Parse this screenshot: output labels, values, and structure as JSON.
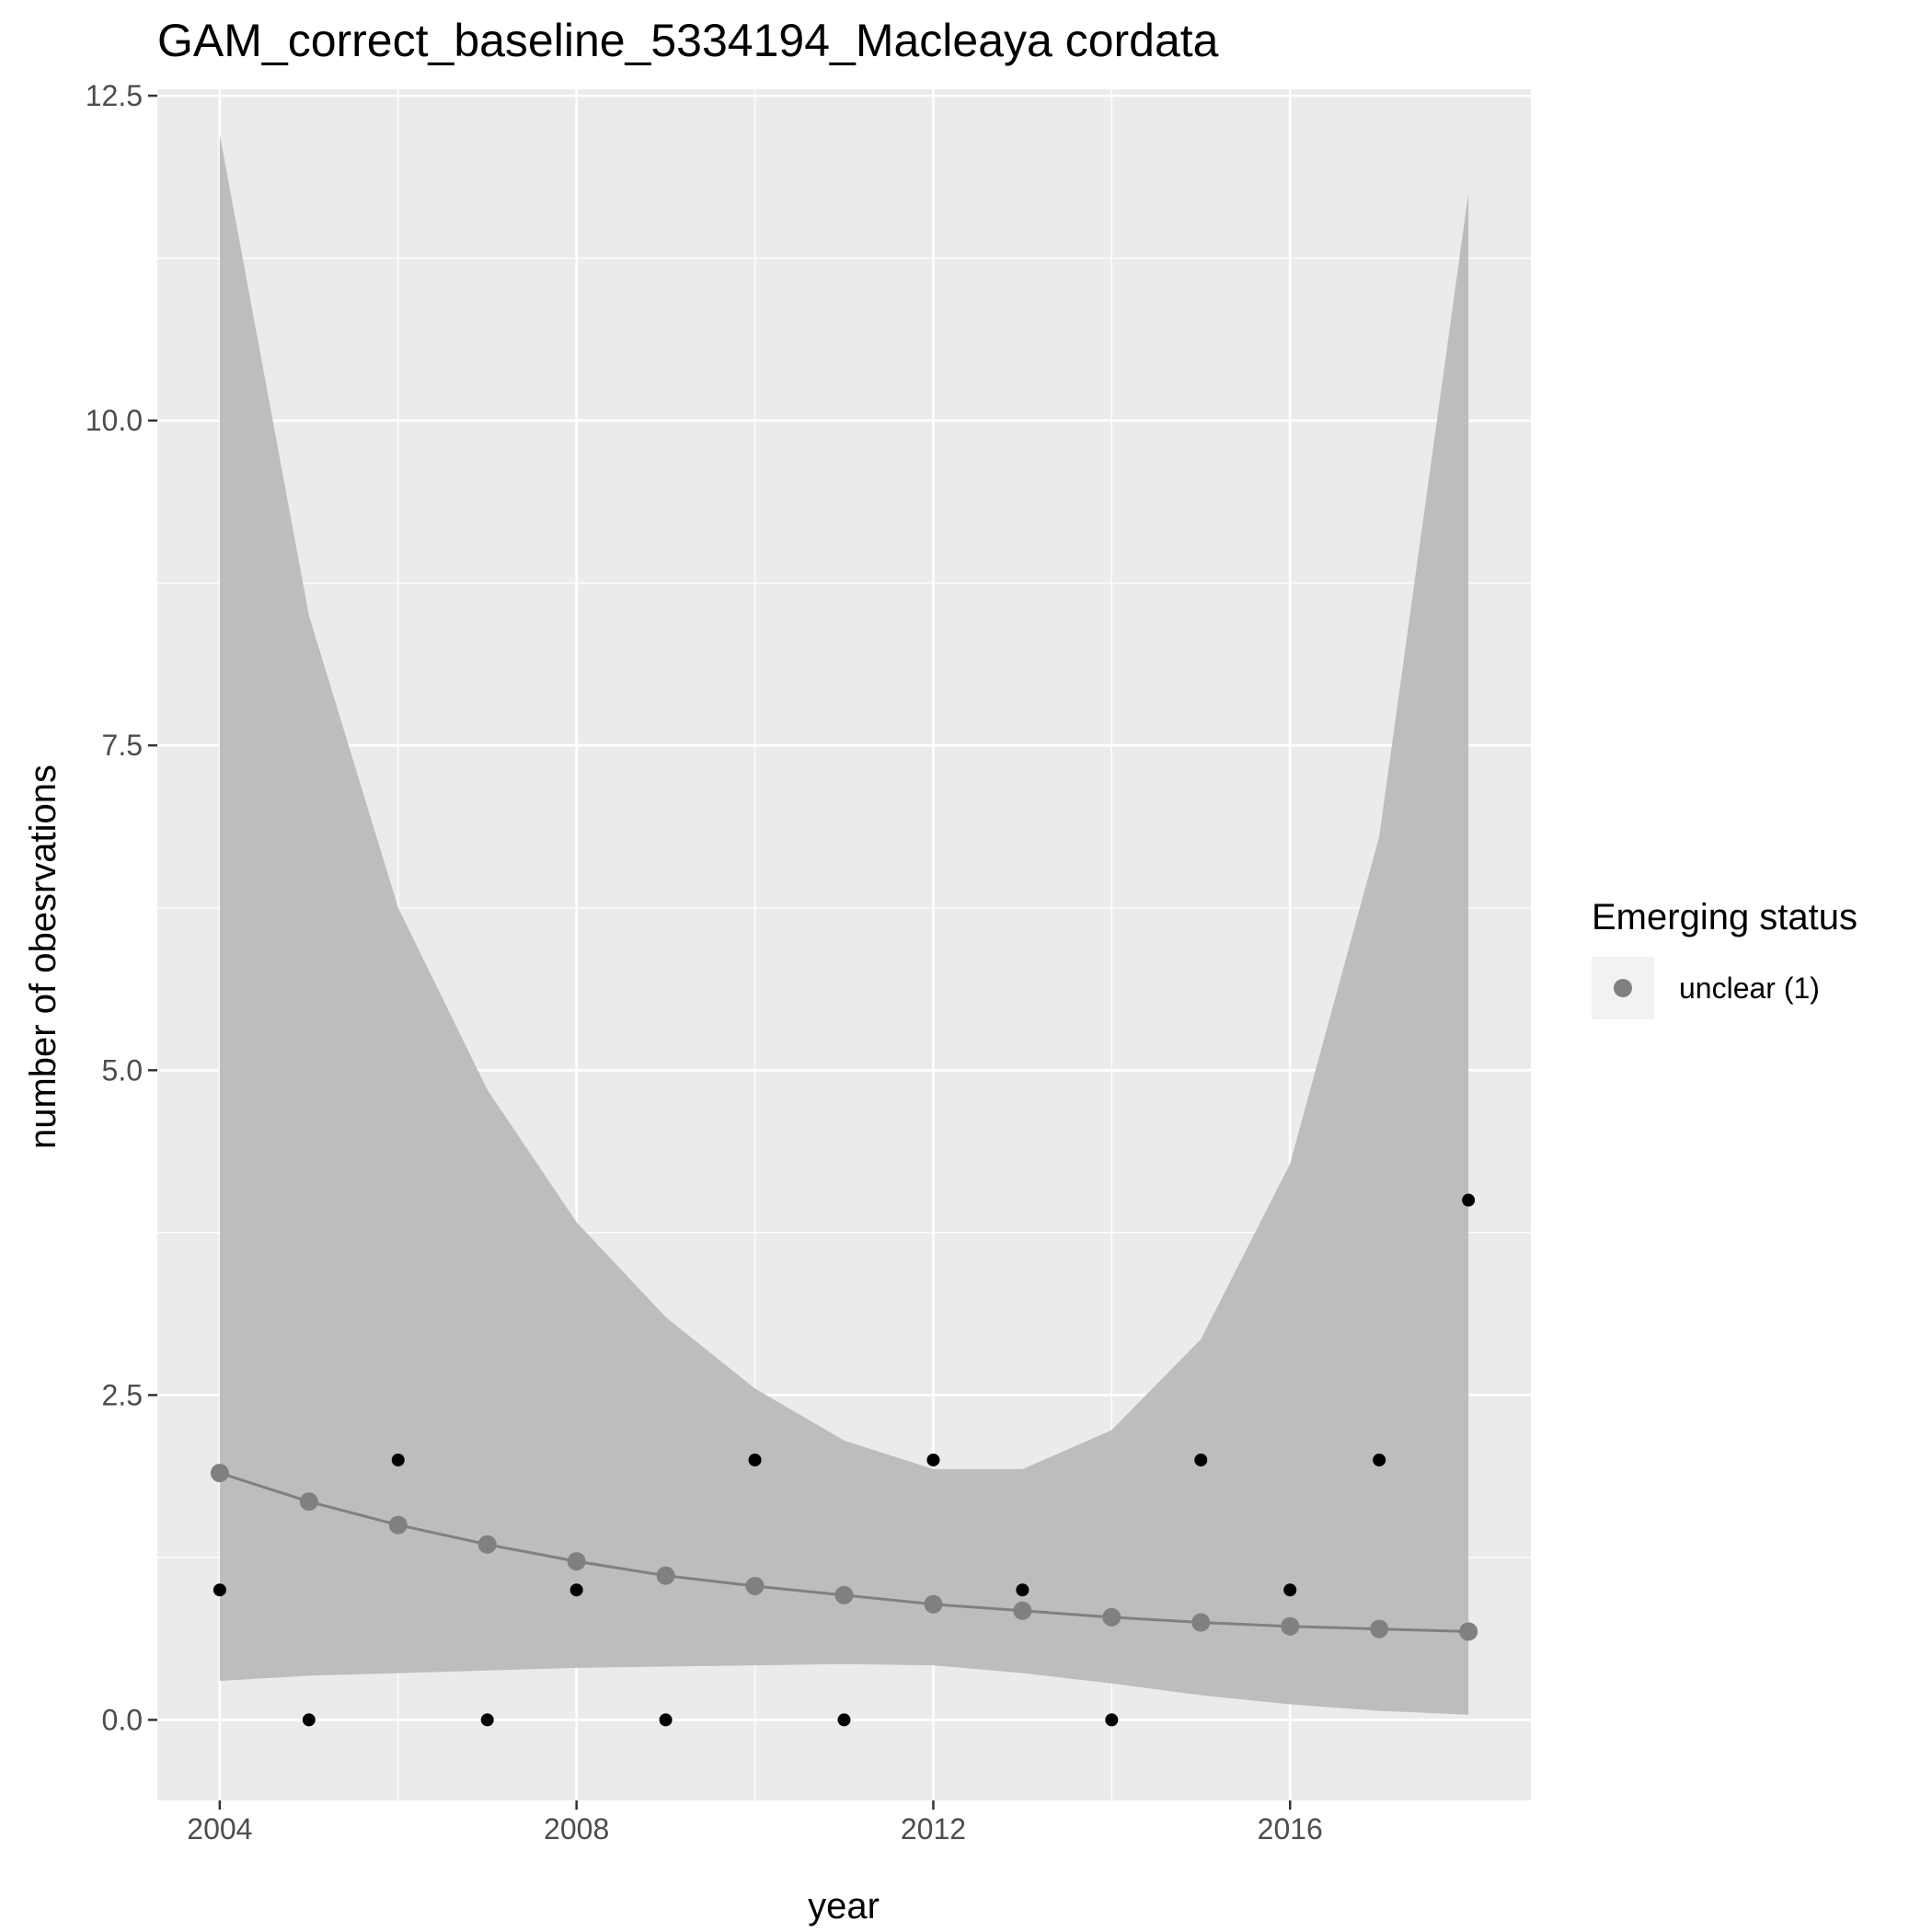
{
  "chart_data": {
    "type": "line",
    "title": "GAM_correct_baseline_5334194_Macleaya cordata",
    "xlabel": "year",
    "ylabel": "number of obesrvations",
    "xlim": [
      2003.3,
      2018.7
    ],
    "ylim": [
      -0.62,
      12.55
    ],
    "x_ticks": [
      2004,
      2008,
      2012,
      2016
    ],
    "x_tick_labels": [
      "2004",
      "2008",
      "2012",
      "2016"
    ],
    "y_ticks": [
      0.0,
      2.5,
      5.0,
      7.5,
      10.0,
      12.5
    ],
    "y_tick_labels": [
      "0.0",
      "2.5",
      "5.0",
      "7.5",
      "10.0",
      "12.5"
    ],
    "grid": true,
    "legend": {
      "title": "Emerging status",
      "position": "right",
      "entries": [
        {
          "label": "unclear (1)",
          "color": "#808080"
        }
      ]
    },
    "observed": {
      "x": [
        2004,
        2005,
        2006,
        2007,
        2008,
        2009,
        2010,
        2011,
        2012,
        2013,
        2014,
        2015,
        2016,
        2017,
        2018
      ],
      "y": [
        1,
        0,
        2,
        0,
        1,
        0,
        2,
        0,
        2,
        1,
        0,
        2,
        1,
        2,
        4
      ],
      "color": "#000000"
    },
    "series": [
      {
        "name": "unclear (1)",
        "x": [
          2004,
          2005,
          2006,
          2007,
          2008,
          2009,
          2010,
          2011,
          2012,
          2013,
          2014,
          2015,
          2016,
          2017,
          2018
        ],
        "y": [
          1.9,
          1.68,
          1.5,
          1.35,
          1.22,
          1.11,
          1.03,
          0.96,
          0.89,
          0.84,
          0.79,
          0.75,
          0.72,
          0.7,
          0.68
        ],
        "lower": [
          0.3,
          0.34,
          0.36,
          0.38,
          0.4,
          0.41,
          0.42,
          0.43,
          0.42,
          0.36,
          0.28,
          0.19,
          0.12,
          0.07,
          0.04
        ],
        "upper": [
          12.2,
          8.5,
          6.25,
          4.85,
          3.83,
          3.1,
          2.55,
          2.15,
          1.93,
          1.93,
          2.23,
          2.93,
          4.28,
          6.8,
          11.75
        ],
        "color": "#808080"
      }
    ],
    "colors": {
      "panel_background": "#ebebeb",
      "grid": "#ffffff",
      "ribbon": "#bdbdbd",
      "fit": "#808080",
      "observed": "#000000",
      "legend_key_background": "#f2f2f2"
    }
  }
}
